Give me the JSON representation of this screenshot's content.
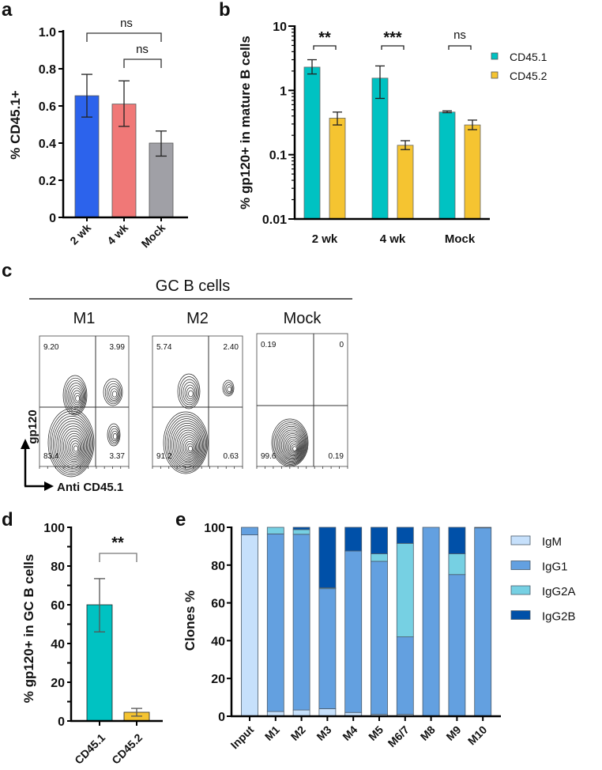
{
  "panel_labels": {
    "a": "a",
    "b": "b",
    "c": "c",
    "d": "d",
    "e": "e"
  },
  "chart_data": [
    {
      "id": "a",
      "type": "bar",
      "ylabel": "% CD45.1+",
      "categories": [
        "2 wk",
        "4 wk",
        "Mock"
      ],
      "values": [
        0.655,
        0.61,
        0.4
      ],
      "error_low": [
        0.54,
        0.49,
        0.33
      ],
      "error_high": [
        0.77,
        0.735,
        0.465
      ],
      "colors": [
        "#2c63ec",
        "#f07877",
        "#a0a0a6"
      ],
      "ylim": [
        0,
        1.0
      ],
      "yticks": [
        0,
        0.2,
        0.4,
        0.6,
        0.8,
        1.0
      ],
      "ytick_labels": [
        "0",
        "0.2",
        "0.4",
        "0.6",
        "0.8",
        "1.0"
      ],
      "significance": [
        {
          "from": "2 wk",
          "to": "Mock",
          "label": "ns"
        },
        {
          "from": "4 wk",
          "to": "Mock",
          "label": "ns"
        }
      ]
    },
    {
      "id": "b",
      "type": "bar",
      "yscale": "log",
      "ylabel": "% gp120+ in mature B cells",
      "categories": [
        "2 wk",
        "4 wk",
        "Mock"
      ],
      "series": [
        {
          "name": "CD45.1",
          "color": "#00c2c2",
          "values": [
            2.3,
            1.55,
            0.46
          ],
          "error_low": [
            1.8,
            0.75,
            0.45
          ],
          "error_high": [
            3.0,
            2.4,
            0.48
          ]
        },
        {
          "name": "CD45.2",
          "color": "#f5c431",
          "values": [
            0.37,
            0.14,
            0.29
          ],
          "error_low": [
            0.29,
            0.12,
            0.245
          ],
          "error_high": [
            0.46,
            0.165,
            0.345
          ]
        }
      ],
      "ylim": [
        0.01,
        10
      ],
      "yticks": [
        0.01,
        0.1,
        1,
        10
      ],
      "ytick_labels": [
        "0.01",
        "0.1",
        "1",
        "10"
      ],
      "significance": [
        "**",
        "***",
        "ns"
      ],
      "legend": "right"
    },
    {
      "id": "d",
      "type": "bar",
      "ylabel": "% gp120+ in GC B cells",
      "categories": [
        "CD45.1",
        "CD45.2"
      ],
      "values": [
        60,
        4.5
      ],
      "error_low": [
        46,
        2.5
      ],
      "error_high": [
        73.5,
        6.5
      ],
      "colors": [
        "#00c2c2",
        "#f5c431"
      ],
      "ylim": [
        0,
        100
      ],
      "yticks": [
        0,
        20,
        40,
        60,
        80,
        100
      ],
      "ytick_labels": [
        "0",
        "20",
        "40",
        "60",
        "80",
        "100"
      ],
      "significance": [
        {
          "from": "CD45.1",
          "to": "CD45.2",
          "label": "**"
        }
      ]
    },
    {
      "id": "e",
      "type": "bar",
      "stacked": true,
      "ylabel": "Clones %",
      "categories": [
        "Input",
        "M1",
        "M2",
        "M3",
        "M4",
        "M5",
        "M6/7",
        "M8",
        "M9",
        "M10"
      ],
      "series": [
        {
          "name": "IgM",
          "color": "#c6e0fb",
          "values": [
            96,
            2.5,
            3.3,
            4,
            2,
            1,
            1,
            0,
            0,
            0
          ]
        },
        {
          "name": "IgG1",
          "color": "#63a0e0",
          "values": [
            4,
            94,
            93,
            63.5,
            85.5,
            81,
            41,
            100,
            75,
            99.7
          ]
        },
        {
          "name": "IgG2A",
          "color": "#76d0e3",
          "values": [
            0,
            3.5,
            2.5,
            0.5,
            0,
            4,
            49.5,
            0,
            11,
            0
          ]
        },
        {
          "name": "IgG2B",
          "color": "#0050a8",
          "values": [
            0,
            0,
            1.2,
            32,
            12.5,
            14,
            8.5,
            0,
            14,
            0.3
          ]
        }
      ],
      "ylim": [
        0,
        100
      ],
      "yticks": [
        0,
        20,
        40,
        60,
        80,
        100
      ],
      "ytick_labels": [
        "0",
        "20",
        "40",
        "60",
        "80",
        "100"
      ],
      "legend": "right"
    }
  ],
  "flow": {
    "title": "GC B cells",
    "xlabel": "Anti CD45.1",
    "ylabel": "gp120",
    "plots": [
      {
        "name": "M1",
        "quadrants": {
          "ul": "9.20",
          "ur": "3.99",
          "ll": "83.4",
          "lr": "3.37"
        }
      },
      {
        "name": "M2",
        "quadrants": {
          "ul": "5.74",
          "ur": "2.40",
          "ll": "91.2",
          "lr": "0.63"
        }
      },
      {
        "name": "Mock",
        "quadrants": {
          "ul": "0.19",
          "ur": "0",
          "ll": "99.6",
          "lr": "0.19"
        }
      }
    ]
  }
}
